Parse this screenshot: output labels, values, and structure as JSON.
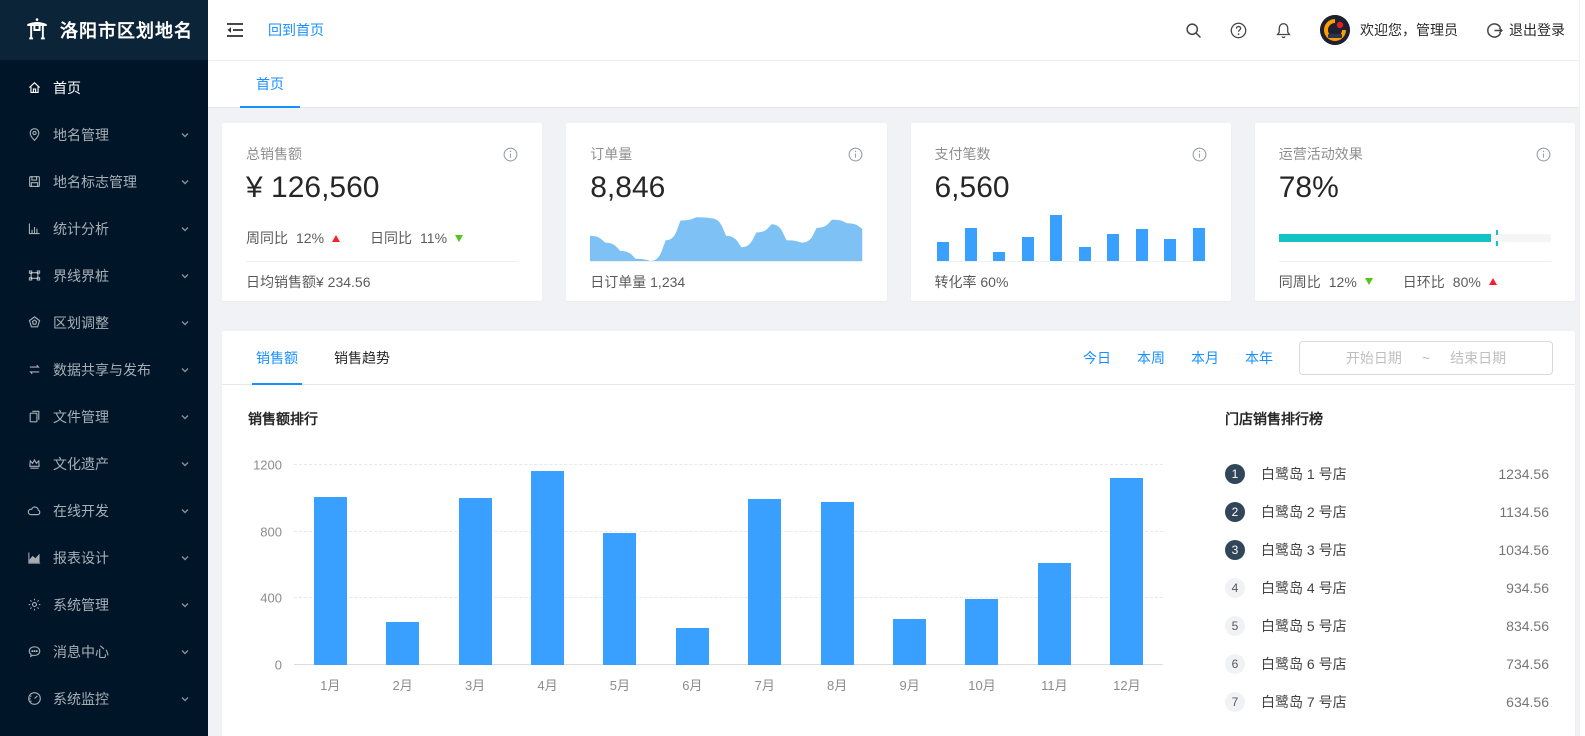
{
  "app": {
    "title": "洛阳市区划地名"
  },
  "colors": {
    "primary": "#1890ff",
    "bar_blue": "#3aa0ff",
    "spark_blue": "#7ec2f5",
    "teal": "#13c2c2",
    "up_red": "#f5222d",
    "down_green": "#52c41a",
    "sider_bg": "#011529",
    "logo_bg": "#0c2438",
    "rank_badge_dark": "#314659"
  },
  "sidebar": {
    "items": [
      {
        "label": "首页",
        "icon": "home-icon",
        "active": true,
        "chevron": false
      },
      {
        "label": "地名管理",
        "icon": "location-icon",
        "active": false,
        "chevron": true
      },
      {
        "label": "地名标志管理",
        "icon": "save-icon",
        "active": false,
        "chevron": true
      },
      {
        "label": "统计分析",
        "icon": "bar-chart-icon",
        "active": false,
        "chevron": true
      },
      {
        "label": "界线界桩",
        "icon": "border-icon",
        "active": false,
        "chevron": true
      },
      {
        "label": "区划调整",
        "icon": "badge-icon",
        "active": false,
        "chevron": true
      },
      {
        "label": "数据共享与发布",
        "icon": "sync-icon",
        "active": false,
        "chevron": true
      },
      {
        "label": "文件管理",
        "icon": "file-icon",
        "active": false,
        "chevron": true
      },
      {
        "label": "文化遗产",
        "icon": "crown-icon",
        "active": false,
        "chevron": true
      },
      {
        "label": "在线开发",
        "icon": "cloud-icon",
        "active": false,
        "chevron": true
      },
      {
        "label": "报表设计",
        "icon": "area-chart-icon",
        "active": false,
        "chevron": true
      },
      {
        "label": "系统管理",
        "icon": "gear-icon",
        "active": false,
        "chevron": true
      },
      {
        "label": "消息中心",
        "icon": "message-icon",
        "active": false,
        "chevron": true
      },
      {
        "label": "系统监控",
        "icon": "monitor-icon",
        "active": false,
        "chevron": true
      }
    ]
  },
  "header": {
    "back_home": "回到首页",
    "welcome": "欢迎您，管理员",
    "logout": "退出登录",
    "icons": [
      "search-icon",
      "help-icon",
      "bell-icon"
    ]
  },
  "tabbar": {
    "tabs": [
      {
        "label": "首页",
        "active": true
      }
    ]
  },
  "stat_cards": [
    {
      "title": "总销售额",
      "value": "¥ 126,560",
      "trends": [
        {
          "label": "周同比",
          "value": "12%",
          "direction": "up"
        },
        {
          "label": "日同比",
          "value": "11%",
          "direction": "down"
        }
      ],
      "footer": "日均销售额¥ 234.56"
    },
    {
      "title": "订单量",
      "value": "8,846",
      "sparkline": [
        55,
        40,
        22,
        5,
        0,
        45,
        88,
        95,
        93,
        55,
        30,
        62,
        80,
        45,
        40,
        72,
        90,
        82,
        70
      ],
      "footer": "日订单量 1,234"
    },
    {
      "title": "支付笔数",
      "value": "6,560",
      "bars": [
        42,
        71,
        19,
        53,
        100,
        31,
        58,
        69,
        48,
        71
      ],
      "footer": "转化率 60%"
    },
    {
      "title": "运营活动效果",
      "value": "78%",
      "progress": {
        "percent": 78,
        "target": 80
      },
      "trends": [
        {
          "label": "同周比",
          "value": "12%",
          "direction": "down"
        },
        {
          "label": "日环比",
          "value": "80%",
          "direction": "up"
        }
      ]
    }
  ],
  "panel": {
    "tabs": [
      {
        "label": "销售额",
        "active": true
      },
      {
        "label": "销售趋势",
        "active": false
      }
    ],
    "filters": [
      "今日",
      "本周",
      "本月",
      "本年"
    ],
    "date_range": {
      "start_placeholder": "开始日期",
      "separator": "~",
      "end_placeholder": "结束日期"
    }
  },
  "chart_data": {
    "type": "bar",
    "title": "销售额排行",
    "categories": [
      "1月",
      "2月",
      "3月",
      "4月",
      "5月",
      "6月",
      "7月",
      "8月",
      "9月",
      "10月",
      "11月",
      "12月"
    ],
    "values": [
      1010,
      260,
      1000,
      1165,
      790,
      220,
      995,
      980,
      275,
      395,
      610,
      1120
    ],
    "xlabel": "",
    "ylabel": "",
    "ylim": [
      0,
      1200
    ],
    "yticks": [
      0,
      400,
      800,
      1200
    ],
    "grid": "dashed-horizontal",
    "legend": "none",
    "bar_color": "#3aa0ff"
  },
  "ranking": {
    "title": "门店销售排行榜",
    "items": [
      {
        "rank": "1",
        "name": "白鹭岛 1 号店",
        "value": "1234.56"
      },
      {
        "rank": "2",
        "name": "白鹭岛 2 号店",
        "value": "1134.56"
      },
      {
        "rank": "3",
        "name": "白鹭岛 3 号店",
        "value": "1034.56"
      },
      {
        "rank": "4",
        "name": "白鹭岛 4 号店",
        "value": "934.56"
      },
      {
        "rank": "5",
        "name": "白鹭岛 5 号店",
        "value": "834.56"
      },
      {
        "rank": "6",
        "name": "白鹭岛 6 号店",
        "value": "734.56"
      },
      {
        "rank": "7",
        "name": "白鹭岛 7 号店",
        "value": "634.56"
      }
    ]
  }
}
